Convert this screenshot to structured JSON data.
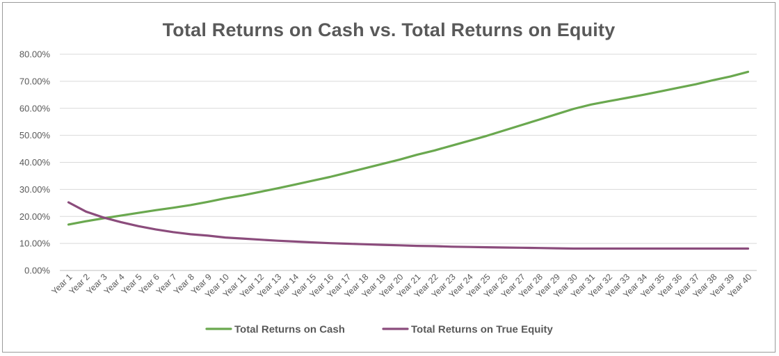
{
  "chart_data": {
    "type": "line",
    "title": "Total Returns on Cash vs. Total Returns on Equity",
    "xlabel": "",
    "ylabel": "",
    "categories": [
      "Year 1",
      "Year 2",
      "Year 3",
      "Year 4",
      "Year 5",
      "Year 6",
      "Year 7",
      "Year 8",
      "Year 9",
      "Year 10",
      "Year 11",
      "Year 12",
      "Year 13",
      "Year 14",
      "Year 15",
      "Year 16",
      "Year 17",
      "Year 18",
      "Year 19",
      "Year 20",
      "Year 21",
      "Year 22",
      "Year 23",
      "Year 24",
      "Year 25",
      "Year 26",
      "Year 27",
      "Year 28",
      "Year 29",
      "Year 30",
      "Year 31",
      "Year 32",
      "Year 33",
      "Year 34",
      "Year 35",
      "Year 36",
      "Year 37",
      "Year 38",
      "Year 39",
      "Year 40"
    ],
    "ylim": [
      0,
      80
    ],
    "yticks": [
      "0.00%",
      "10.00%",
      "20.00%",
      "30.00%",
      "40.00%",
      "50.00%",
      "60.00%",
      "70.00%",
      "80.00%"
    ],
    "grid": true,
    "legend": "bottom",
    "series": [
      {
        "name": "Total Returns on Cash",
        "color": "#6aa84f",
        "values": [
          17.0,
          18.2,
          19.3,
          20.3,
          21.3,
          22.3,
          23.2,
          24.2,
          25.4,
          26.7,
          27.8,
          29.1,
          30.4,
          31.8,
          33.2,
          34.6,
          36.2,
          37.8,
          39.4,
          41.0,
          42.8,
          44.4,
          46.2,
          48.0,
          49.8,
          51.8,
          53.8,
          55.8,
          57.8,
          59.8,
          61.4,
          62.6,
          63.8,
          65.0,
          66.3,
          67.6,
          68.9,
          70.4,
          71.8,
          73.5
        ]
      },
      {
        "name": "Total Returns on True Equity",
        "color": "#8b4c7c",
        "values": [
          25.2,
          21.8,
          19.6,
          17.9,
          16.4,
          15.2,
          14.2,
          13.4,
          12.9,
          12.2,
          11.8,
          11.4,
          11.0,
          10.7,
          10.4,
          10.1,
          9.9,
          9.7,
          9.5,
          9.3,
          9.1,
          9.0,
          8.8,
          8.7,
          8.6,
          8.5,
          8.4,
          8.3,
          8.2,
          8.1,
          8.1,
          8.1,
          8.1,
          8.1,
          8.1,
          8.1,
          8.1,
          8.1,
          8.1,
          8.1
        ]
      }
    ]
  }
}
